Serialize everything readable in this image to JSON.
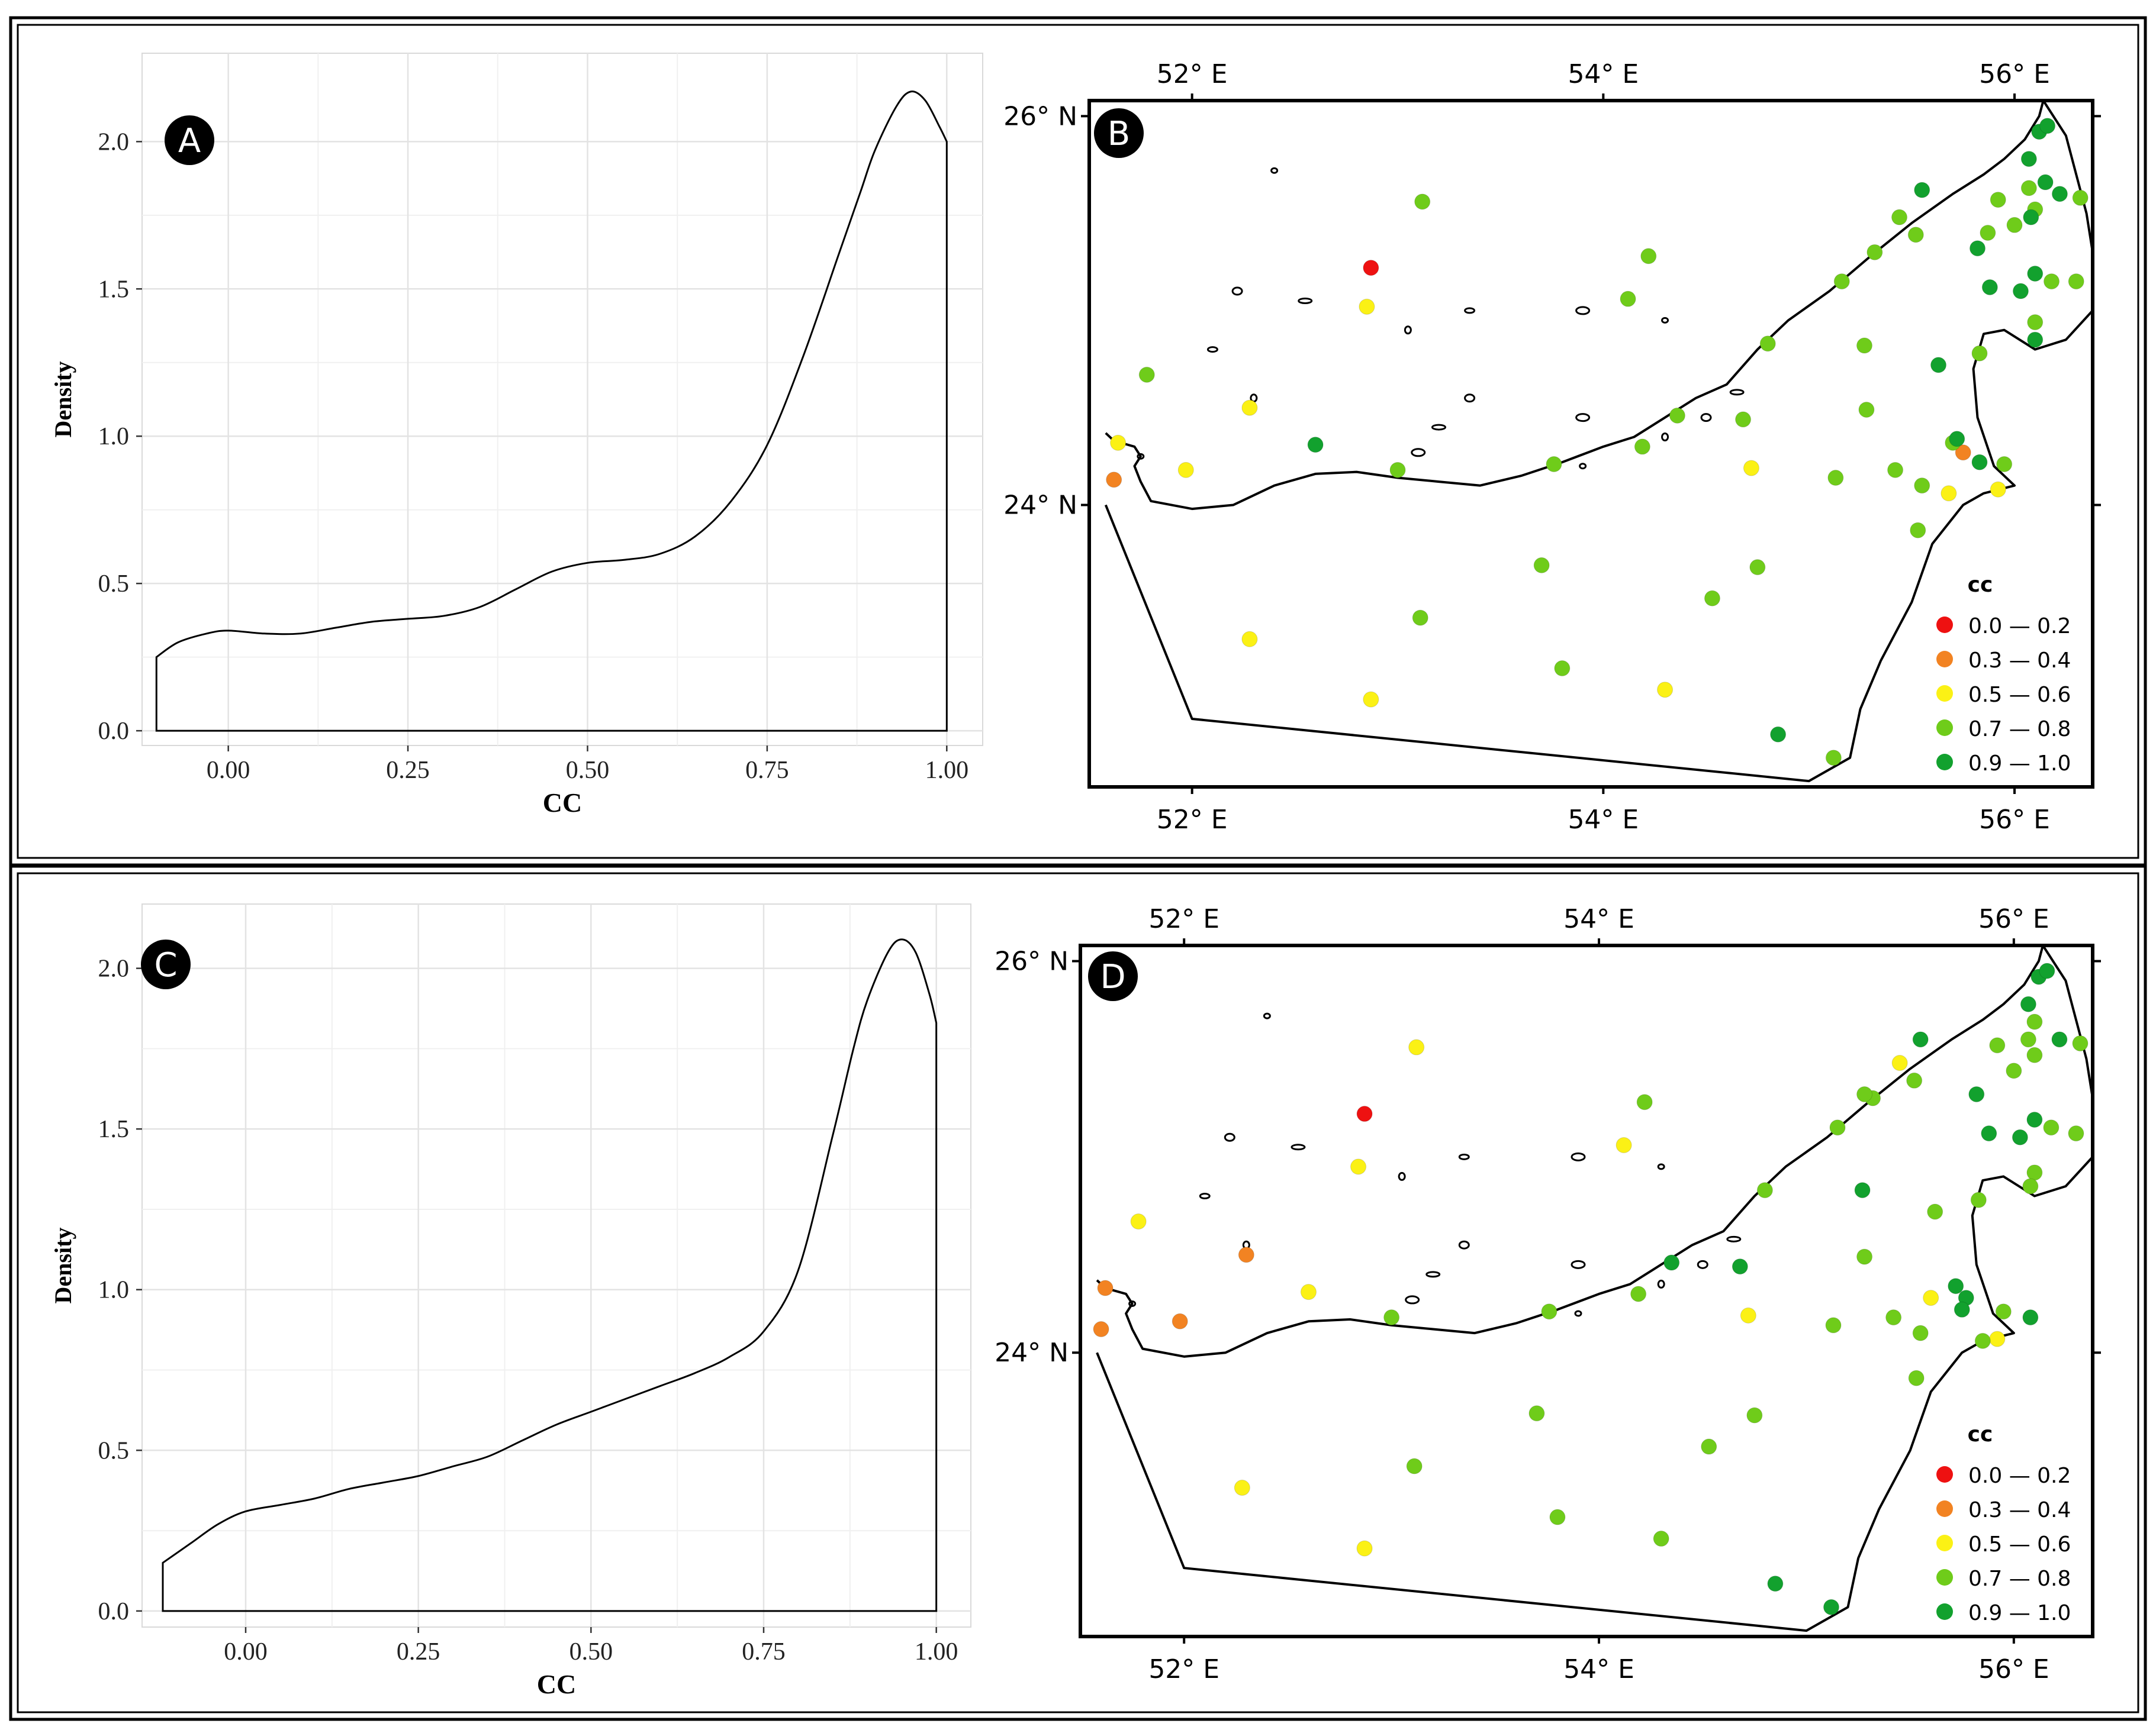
{
  "chart_data": [
    {
      "panel": "A",
      "type": "area",
      "title": "",
      "xlabel": "CC",
      "ylabel": "Density",
      "xlim": [
        -0.12,
        1.05
      ],
      "ylim": [
        -0.05,
        2.3
      ],
      "xticks": [
        "0.00",
        "0.25",
        "0.50",
        "0.75",
        "1.00"
      ],
      "yticks": [
        "0.0",
        "0.5",
        "1.0",
        "1.5",
        "2.0"
      ],
      "grid": true,
      "x": [
        -0.1,
        -0.07,
        -0.03,
        0.0,
        0.05,
        0.1,
        0.15,
        0.2,
        0.25,
        0.3,
        0.35,
        0.4,
        0.45,
        0.5,
        0.55,
        0.6,
        0.65,
        0.7,
        0.75,
        0.8,
        0.85,
        0.88,
        0.9,
        0.93,
        0.95,
        0.97,
        0.99,
        1.0
      ],
      "y": [
        0.25,
        0.3,
        0.33,
        0.34,
        0.33,
        0.33,
        0.35,
        0.37,
        0.38,
        0.39,
        0.42,
        0.48,
        0.54,
        0.57,
        0.58,
        0.6,
        0.66,
        0.78,
        0.97,
        1.27,
        1.62,
        1.83,
        1.97,
        2.12,
        2.17,
        2.14,
        2.05,
        2.0
      ]
    },
    {
      "panel": "B",
      "type": "scatter",
      "xlabel": "",
      "ylabel": "",
      "xticks": [
        "52° E",
        "54° E",
        "56° E"
      ],
      "yticks": [
        "26° N",
        "24° N"
      ],
      "legend_title": "cc",
      "legend": [
        {
          "label": "0.0 — 0.2",
          "color": "#ee1111"
        },
        {
          "label": "0.3 — 0.4",
          "color": "#f28322"
        },
        {
          "label": "0.5 — 0.6",
          "color": "#fbf115"
        },
        {
          "label": "0.7 — 0.8",
          "color": "#6fcc1a"
        },
        {
          "label": "0.9 — 1.0",
          "color": "#12a12e"
        }
      ],
      "points": [
        {
          "lon": 52.87,
          "lat": 25.22,
          "cls": 0
        },
        {
          "lon": 51.62,
          "lat": 24.13,
          "cls": 1
        },
        {
          "lon": 55.75,
          "lat": 24.27,
          "cls": 1
        },
        {
          "lon": 52.85,
          "lat": 25.02,
          "cls": 2
        },
        {
          "lon": 52.28,
          "lat": 24.5,
          "cls": 2
        },
        {
          "lon": 51.64,
          "lat": 24.32,
          "cls": 2
        },
        {
          "lon": 51.97,
          "lat": 24.18,
          "cls": 2
        },
        {
          "lon": 54.72,
          "lat": 24.19,
          "cls": 2
        },
        {
          "lon": 55.68,
          "lat": 24.06,
          "cls": 2
        },
        {
          "lon": 55.92,
          "lat": 24.08,
          "cls": 2
        },
        {
          "lon": 52.28,
          "lat": 23.31,
          "cls": 2
        },
        {
          "lon": 52.87,
          "lat": 23.0,
          "cls": 2
        },
        {
          "lon": 54.3,
          "lat": 23.05,
          "cls": 2
        },
        {
          "lon": 53.12,
          "lat": 25.56,
          "cls": 3
        },
        {
          "lon": 51.78,
          "lat": 24.67,
          "cls": 3
        },
        {
          "lon": 54.22,
          "lat": 25.28,
          "cls": 3
        },
        {
          "lon": 54.12,
          "lat": 25.06,
          "cls": 3
        },
        {
          "lon": 53.0,
          "lat": 24.18,
          "cls": 3
        },
        {
          "lon": 53.76,
          "lat": 24.21,
          "cls": 3
        },
        {
          "lon": 54.19,
          "lat": 24.3,
          "cls": 3
        },
        {
          "lon": 54.36,
          "lat": 24.46,
          "cls": 3
        },
        {
          "lon": 54.68,
          "lat": 24.44,
          "cls": 3
        },
        {
          "lon": 54.8,
          "lat": 24.83,
          "cls": 3
        },
        {
          "lon": 55.13,
          "lat": 24.14,
          "cls": 3
        },
        {
          "lon": 55.27,
          "lat": 24.82,
          "cls": 3
        },
        {
          "lon": 55.28,
          "lat": 24.49,
          "cls": 3
        },
        {
          "lon": 55.42,
          "lat": 24.18,
          "cls": 3
        },
        {
          "lon": 55.55,
          "lat": 24.1,
          "cls": 3
        },
        {
          "lon": 55.53,
          "lat": 23.87,
          "cls": 3
        },
        {
          "lon": 55.16,
          "lat": 25.15,
          "cls": 3
        },
        {
          "lon": 55.32,
          "lat": 25.3,
          "cls": 3
        },
        {
          "lon": 55.44,
          "lat": 25.48,
          "cls": 3
        },
        {
          "lon": 55.52,
          "lat": 25.39,
          "cls": 3
        },
        {
          "lon": 55.7,
          "lat": 24.32,
          "cls": 3
        },
        {
          "lon": 55.95,
          "lat": 24.21,
          "cls": 3
        },
        {
          "lon": 55.83,
          "lat": 24.78,
          "cls": 3
        },
        {
          "lon": 55.87,
          "lat": 25.4,
          "cls": 3
        },
        {
          "lon": 56.0,
          "lat": 25.44,
          "cls": 3
        },
        {
          "lon": 56.07,
          "lat": 25.63,
          "cls": 3
        },
        {
          "lon": 55.92,
          "lat": 25.57,
          "cls": 3
        },
        {
          "lon": 56.1,
          "lat": 25.52,
          "cls": 3
        },
        {
          "lon": 56.18,
          "lat": 25.15,
          "cls": 3
        },
        {
          "lon": 56.3,
          "lat": 25.15,
          "cls": 3
        },
        {
          "lon": 56.1,
          "lat": 24.94,
          "cls": 3
        },
        {
          "lon": 56.32,
          "lat": 25.58,
          "cls": 3
        },
        {
          "lon": 53.7,
          "lat": 23.69,
          "cls": 3
        },
        {
          "lon": 54.75,
          "lat": 23.68,
          "cls": 3
        },
        {
          "lon": 53.11,
          "lat": 23.42,
          "cls": 3
        },
        {
          "lon": 54.53,
          "lat": 23.52,
          "cls": 3
        },
        {
          "lon": 53.8,
          "lat": 23.16,
          "cls": 3
        },
        {
          "lon": 55.12,
          "lat": 22.7,
          "cls": 3
        },
        {
          "lon": 52.6,
          "lat": 24.31,
          "cls": 4
        },
        {
          "lon": 54.85,
          "lat": 22.82,
          "cls": 4
        },
        {
          "lon": 55.55,
          "lat": 25.62,
          "cls": 4
        },
        {
          "lon": 55.82,
          "lat": 25.32,
          "cls": 4
        },
        {
          "lon": 55.88,
          "lat": 25.12,
          "cls": 4
        },
        {
          "lon": 56.03,
          "lat": 25.1,
          "cls": 4
        },
        {
          "lon": 56.1,
          "lat": 25.19,
          "cls": 4
        },
        {
          "lon": 56.07,
          "lat": 25.78,
          "cls": 4
        },
        {
          "lon": 56.15,
          "lat": 25.66,
          "cls": 4
        },
        {
          "lon": 56.22,
          "lat": 25.6,
          "cls": 4
        },
        {
          "lon": 56.12,
          "lat": 25.92,
          "cls": 4
        },
        {
          "lon": 56.16,
          "lat": 25.95,
          "cls": 4
        },
        {
          "lon": 56.08,
          "lat": 25.48,
          "cls": 4
        },
        {
          "lon": 56.1,
          "lat": 24.85,
          "cls": 4
        },
        {
          "lon": 55.63,
          "lat": 24.72,
          "cls": 4
        },
        {
          "lon": 55.72,
          "lat": 24.34,
          "cls": 4
        },
        {
          "lon": 55.83,
          "lat": 24.22,
          "cls": 4
        }
      ]
    },
    {
      "panel": "C",
      "type": "area",
      "title": "",
      "xlabel": "CC",
      "ylabel": "Density",
      "xlim": [
        -0.15,
        1.05
      ],
      "ylim": [
        -0.05,
        2.2
      ],
      "xticks": [
        "0.00",
        "0.25",
        "0.50",
        "0.75",
        "1.00"
      ],
      "yticks": [
        "0.0",
        "0.5",
        "1.0",
        "1.5",
        "2.0"
      ],
      "grid": true,
      "x": [
        -0.12,
        -0.08,
        -0.04,
        0.0,
        0.05,
        0.1,
        0.15,
        0.2,
        0.25,
        0.3,
        0.35,
        0.4,
        0.45,
        0.5,
        0.55,
        0.6,
        0.65,
        0.7,
        0.75,
        0.8,
        0.85,
        0.88,
        0.9,
        0.93,
        0.95,
        0.97,
        0.99,
        1.0
      ],
      "y": [
        0.15,
        0.21,
        0.27,
        0.31,
        0.33,
        0.35,
        0.38,
        0.4,
        0.42,
        0.45,
        0.48,
        0.53,
        0.58,
        0.62,
        0.66,
        0.7,
        0.74,
        0.79,
        0.87,
        1.06,
        1.48,
        1.75,
        1.9,
        2.05,
        2.09,
        2.05,
        1.92,
        1.83
      ]
    },
    {
      "panel": "D",
      "type": "scatter",
      "xlabel": "",
      "ylabel": "",
      "xticks": [
        "52° E",
        "54° E",
        "56° E"
      ],
      "yticks": [
        "26° N",
        "24° N"
      ],
      "legend_title": "cc",
      "legend": [
        {
          "label": "0.0 — 0.2",
          "color": "#ee1111"
        },
        {
          "label": "0.3 — 0.4",
          "color": "#f28322"
        },
        {
          "label": "0.5 — 0.6",
          "color": "#fbf115"
        },
        {
          "label": "0.7 — 0.8",
          "color": "#6fcc1a"
        },
        {
          "label": "0.9 — 1.0",
          "color": "#12a12e"
        }
      ],
      "points": [
        {
          "lon": 52.87,
          "lat": 25.22,
          "cls": 0
        },
        {
          "lon": 51.62,
          "lat": 24.33,
          "cls": 1
        },
        {
          "lon": 51.6,
          "lat": 24.12,
          "cls": 1
        },
        {
          "lon": 51.98,
          "lat": 24.16,
          "cls": 1
        },
        {
          "lon": 52.3,
          "lat": 24.5,
          "cls": 1
        },
        {
          "lon": 51.78,
          "lat": 24.67,
          "cls": 2
        },
        {
          "lon": 52.84,
          "lat": 24.95,
          "cls": 2
        },
        {
          "lon": 53.12,
          "lat": 25.56,
          "cls": 2
        },
        {
          "lon": 54.12,
          "lat": 25.06,
          "cls": 2
        },
        {
          "lon": 52.6,
          "lat": 24.31,
          "cls": 2
        },
        {
          "lon": 54.72,
          "lat": 24.19,
          "cls": 2
        },
        {
          "lon": 55.6,
          "lat": 24.28,
          "cls": 2
        },
        {
          "lon": 55.92,
          "lat": 24.07,
          "cls": 2
        },
        {
          "lon": 55.45,
          "lat": 25.48,
          "cls": 2
        },
        {
          "lon": 52.28,
          "lat": 23.31,
          "cls": 2
        },
        {
          "lon": 52.87,
          "lat": 23.0,
          "cls": 2
        },
        {
          "lon": 54.22,
          "lat": 25.28,
          "cls": 3
        },
        {
          "lon": 53.0,
          "lat": 24.18,
          "cls": 3
        },
        {
          "lon": 53.76,
          "lat": 24.21,
          "cls": 3
        },
        {
          "lon": 54.19,
          "lat": 24.3,
          "cls": 3
        },
        {
          "lon": 54.8,
          "lat": 24.83,
          "cls": 3
        },
        {
          "lon": 55.13,
          "lat": 24.14,
          "cls": 3
        },
        {
          "lon": 55.28,
          "lat": 24.49,
          "cls": 3
        },
        {
          "lon": 55.42,
          "lat": 24.18,
          "cls": 3
        },
        {
          "lon": 55.55,
          "lat": 24.1,
          "cls": 3
        },
        {
          "lon": 55.53,
          "lat": 23.87,
          "cls": 3
        },
        {
          "lon": 55.32,
          "lat": 25.3,
          "cls": 3
        },
        {
          "lon": 55.52,
          "lat": 25.39,
          "cls": 3
        },
        {
          "lon": 55.62,
          "lat": 24.72,
          "cls": 3
        },
        {
          "lon": 55.83,
          "lat": 24.78,
          "cls": 3
        },
        {
          "lon": 55.85,
          "lat": 24.06,
          "cls": 3
        },
        {
          "lon": 55.95,
          "lat": 24.21,
          "cls": 3
        },
        {
          "lon": 56.0,
          "lat": 25.44,
          "cls": 3
        },
        {
          "lon": 56.07,
          "lat": 25.6,
          "cls": 3
        },
        {
          "lon": 55.92,
          "lat": 25.57,
          "cls": 3
        },
        {
          "lon": 56.1,
          "lat": 25.52,
          "cls": 3
        },
        {
          "lon": 56.1,
          "lat": 25.69,
          "cls": 3
        },
        {
          "lon": 56.18,
          "lat": 25.15,
          "cls": 3
        },
        {
          "lon": 56.3,
          "lat": 25.12,
          "cls": 3
        },
        {
          "lon": 56.1,
          "lat": 24.92,
          "cls": 3
        },
        {
          "lon": 56.32,
          "lat": 25.58,
          "cls": 3
        },
        {
          "lon": 56.08,
          "lat": 24.85,
          "cls": 3
        },
        {
          "lon": 55.15,
          "lat": 25.15,
          "cls": 3
        },
        {
          "lon": 55.28,
          "lat": 25.32,
          "cls": 3
        },
        {
          "lon": 53.7,
          "lat": 23.69,
          "cls": 3
        },
        {
          "lon": 54.75,
          "lat": 23.68,
          "cls": 3
        },
        {
          "lon": 53.11,
          "lat": 23.42,
          "cls": 3
        },
        {
          "lon": 54.53,
          "lat": 23.52,
          "cls": 3
        },
        {
          "lon": 53.8,
          "lat": 23.16,
          "cls": 3
        },
        {
          "lon": 54.3,
          "lat": 23.05,
          "cls": 3
        },
        {
          "lon": 54.35,
          "lat": 24.46,
          "cls": 4
        },
        {
          "lon": 54.68,
          "lat": 24.44,
          "cls": 4
        },
        {
          "lon": 55.27,
          "lat": 24.83,
          "cls": 4
        },
        {
          "lon": 55.72,
          "lat": 24.34,
          "cls": 4
        },
        {
          "lon": 55.77,
          "lat": 24.28,
          "cls": 4
        },
        {
          "lon": 55.82,
          "lat": 25.32,
          "cls": 4
        },
        {
          "lon": 55.88,
          "lat": 25.12,
          "cls": 4
        },
        {
          "lon": 56.03,
          "lat": 25.1,
          "cls": 4
        },
        {
          "lon": 56.1,
          "lat": 25.19,
          "cls": 4
        },
        {
          "lon": 56.07,
          "lat": 25.78,
          "cls": 4
        },
        {
          "lon": 56.22,
          "lat": 25.6,
          "cls": 4
        },
        {
          "lon": 56.12,
          "lat": 25.92,
          "cls": 4
        },
        {
          "lon": 56.16,
          "lat": 25.95,
          "cls": 4
        },
        {
          "lon": 55.55,
          "lat": 25.6,
          "cls": 4
        },
        {
          "lon": 56.08,
          "lat": 24.18,
          "cls": 4
        },
        {
          "lon": 54.85,
          "lat": 22.82,
          "cls": 4
        },
        {
          "lon": 55.12,
          "lat": 22.7,
          "cls": 4
        },
        {
          "lon": 55.75,
          "lat": 24.22,
          "cls": 4
        }
      ]
    }
  ],
  "labels": {
    "A": "A",
    "B": "B",
    "C": "C",
    "D": "D"
  }
}
